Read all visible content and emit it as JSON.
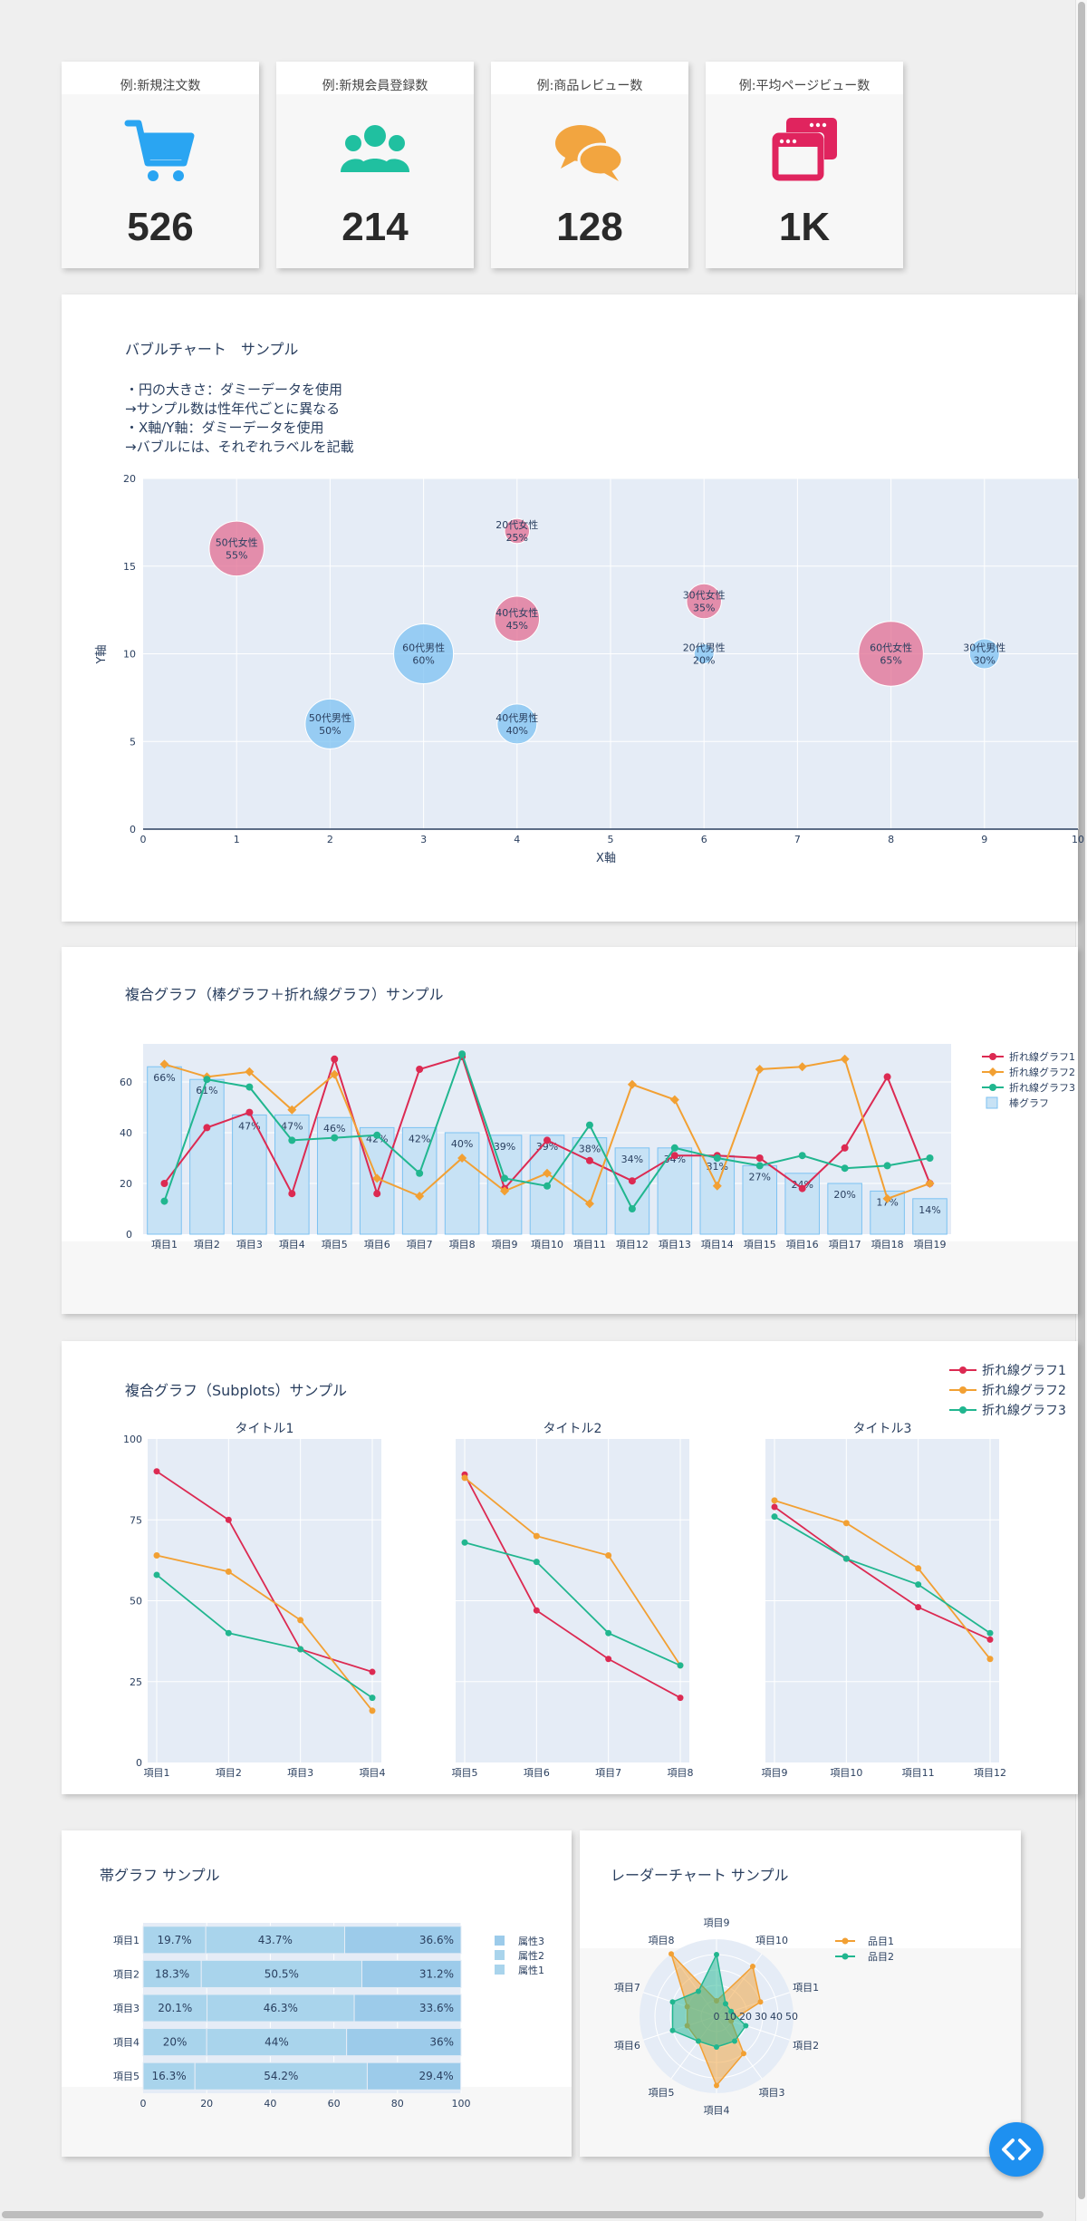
{
  "kpis": [
    {
      "label": "例:新規注文数",
      "value": "526",
      "icon": "shopping-cart-icon",
      "color": "#2aa5f2"
    },
    {
      "label": "例:新規会員登録数",
      "value": "214",
      "icon": "users-icon",
      "color": "#20c0a0"
    },
    {
      "label": "例:商品レビュー数",
      "value": "128",
      "icon": "comments-icon",
      "color": "#f2a540"
    },
    {
      "label": "例:平均ページビュー数",
      "value": "1K",
      "icon": "browser-windows-icon",
      "color": "#e0245e"
    }
  ],
  "chart_data": [
    {
      "type": "scatter",
      "subtype": "bubble",
      "title": "バブルチャート　サンプル",
      "description_lines": [
        "・円の大きさ：ダミーデータを使用",
        "→サンプル数は性年代ごとに異なる",
        "・X軸/Y軸：ダミーデータを使用",
        "→バブルには、それぞれラベルを記載"
      ],
      "xlabel": "X軸",
      "ylabel": "Y軸",
      "xlim": [
        0,
        10
      ],
      "ylim": [
        0,
        20
      ],
      "xticks": [
        0,
        1,
        2,
        3,
        4,
        5,
        6,
        7,
        8,
        9,
        10
      ],
      "yticks": [
        0,
        5,
        10,
        15,
        20
      ],
      "points": [
        {
          "x": 1,
          "y": 16,
          "size": 55,
          "label": "50代女性",
          "pct": "55%",
          "group": "女性"
        },
        {
          "x": 4,
          "y": 17,
          "size": 25,
          "label": "20代女性",
          "pct": "25%",
          "group": "女性"
        },
        {
          "x": 4,
          "y": 12,
          "size": 45,
          "label": "40代女性",
          "pct": "45%",
          "group": "女性"
        },
        {
          "x": 6,
          "y": 13,
          "size": 35,
          "label": "30代女性",
          "pct": "35%",
          "group": "女性"
        },
        {
          "x": 8,
          "y": 10,
          "size": 65,
          "label": "60代女性",
          "pct": "65%",
          "group": "女性"
        },
        {
          "x": 2,
          "y": 6,
          "size": 50,
          "label": "50代男性",
          "pct": "50%",
          "group": "男性"
        },
        {
          "x": 3,
          "y": 10,
          "size": 60,
          "label": "60代男性",
          "pct": "60%",
          "group": "男性"
        },
        {
          "x": 4,
          "y": 6,
          "size": 40,
          "label": "40代男性",
          "pct": "40%",
          "group": "男性"
        },
        {
          "x": 6,
          "y": 10,
          "size": 20,
          "label": "20代男性",
          "pct": "20%",
          "group": "男性"
        },
        {
          "x": 9,
          "y": 10,
          "size": 30,
          "label": "30代男性",
          "pct": "30%",
          "group": "男性"
        }
      ],
      "colors": {
        "女性": "#e26d92",
        "男性": "#7cc2f2"
      }
    },
    {
      "type": "bar",
      "title": "複合グラフ（棒グラフ＋折れ線グラフ）サンプル",
      "categories": [
        "項目1",
        "項目2",
        "項目3",
        "項目4",
        "項目5",
        "項目6",
        "項目7",
        "項目8",
        "項目9",
        "項目10",
        "項目11",
        "項目12",
        "項目13",
        "項目14",
        "項目15",
        "項目16",
        "項目17",
        "項目18",
        "項目19"
      ],
      "ylim": [
        0,
        75
      ],
      "yticks": [
        0,
        20,
        40,
        60
      ],
      "bar": {
        "name": "棒グラフ",
        "values": [
          66,
          61,
          47,
          47,
          46,
          42,
          42,
          40,
          39,
          39,
          38,
          34,
          34,
          31,
          27,
          24,
          20,
          17,
          14
        ],
        "labels": [
          "66%",
          "61%",
          "47%",
          "47%",
          "46%",
          "42%",
          "42%",
          "40%",
          "39%",
          "39%",
          "38%",
          "34%",
          "34%",
          "31%",
          "27%",
          "24%",
          "20%",
          "17%",
          "14%"
        ]
      },
      "series": [
        {
          "name": "折れ線グラフ1",
          "color": "#dc2a52",
          "marker": "circle",
          "values": [
            20,
            42,
            48,
            16,
            69,
            16,
            65,
            70,
            18,
            37,
            29,
            21,
            31,
            31,
            30,
            18,
            34,
            62,
            20
          ]
        },
        {
          "name": "折れ線グラフ2",
          "color": "#f2a033",
          "marker": "diamond",
          "values": [
            67,
            62,
            64,
            49,
            63,
            22,
            15,
            30,
            17,
            24,
            12,
            59,
            53,
            19,
            65,
            66,
            69,
            14,
            20
          ]
        },
        {
          "name": "折れ線グラフ3",
          "color": "#21b68f",
          "marker": "circle",
          "values": [
            13,
            61,
            58,
            37,
            38,
            39,
            24,
            71,
            22,
            19,
            43,
            10,
            34,
            30,
            27,
            31,
            26,
            27,
            30
          ]
        }
      ]
    },
    {
      "type": "line",
      "title": "複合グラフ（Subplots）サンプル",
      "ylim": [
        0,
        100
      ],
      "yticks": [
        0,
        25,
        50,
        75,
        100
      ],
      "legend": [
        "折れ線グラフ1",
        "折れ線グラフ2",
        "折れ線グラフ3"
      ],
      "colors": [
        "#dc2a52",
        "#f2a033",
        "#21b68f"
      ],
      "subplots": [
        {
          "title": "タイトル1",
          "categories": [
            "項目1",
            "項目2",
            "項目3",
            "項目4"
          ],
          "series": [
            [
              90,
              75,
              35,
              28
            ],
            [
              64,
              59,
              44,
              16
            ],
            [
              58,
              40,
              35,
              20
            ]
          ]
        },
        {
          "title": "タイトル2",
          "categories": [
            "項目5",
            "項目6",
            "項目7",
            "項目8"
          ],
          "series": [
            [
              89,
              47,
              32,
              20
            ],
            [
              88,
              70,
              64,
              30
            ],
            [
              68,
              62,
              40,
              30
            ]
          ]
        },
        {
          "title": "タイトル3",
          "categories": [
            "項目9",
            "項目10",
            "項目11",
            "項目12"
          ],
          "series": [
            [
              79,
              63,
              48,
              38
            ],
            [
              81,
              74,
              60,
              32
            ],
            [
              76,
              63,
              55,
              40
            ]
          ]
        }
      ]
    },
    {
      "type": "bar",
      "subtype": "stacked-horizontal",
      "title": "帯グラフ サンプル",
      "categories": [
        "項目1",
        "項目2",
        "項目3",
        "項目4",
        "項目5"
      ],
      "xlim": [
        0,
        100
      ],
      "xticks": [
        0,
        20,
        40,
        60,
        80,
        100
      ],
      "series": [
        {
          "name": "属性1",
          "color": "#a9d4ec",
          "values": [
            19.7,
            18.3,
            20.1,
            20,
            16.3
          ],
          "labels": [
            "19.7%",
            "18.3%",
            "20.1%",
            "20%",
            "16.3%"
          ]
        },
        {
          "name": "属性2",
          "color": "#a9d4ec",
          "values": [
            43.7,
            50.5,
            46.3,
            44,
            54.2
          ],
          "labels": [
            "43.7%",
            "50.5%",
            "46.3%",
            "44%",
            "54.2%"
          ]
        },
        {
          "name": "属性3",
          "color": "#9ccbea",
          "values": [
            36.6,
            31.2,
            33.6,
            36,
            29.4
          ],
          "labels": [
            "36.6%",
            "31.2%",
            "33.6%",
            "36%",
            "29.4%"
          ]
        }
      ],
      "legend_order": [
        "属性3",
        "属性2",
        "属性1"
      ]
    },
    {
      "type": "radar",
      "title": "レーダーチャート サンプル",
      "axes": [
        "項目1",
        "項目2",
        "項目3",
        "項目4",
        "項目5",
        "項目6",
        "項目7",
        "項目8",
        "項目9",
        "項目10"
      ],
      "rlim": [
        0,
        50
      ],
      "rticks": [
        "0",
        "10",
        "20",
        "30",
        "40",
        "50"
      ],
      "series": [
        {
          "name": "品目1",
          "color": "#f2a033",
          "values": [
            30,
            10,
            30,
            45,
            20,
            20,
            20,
            50,
            10,
            40
          ]
        },
        {
          "name": "品目2",
          "color": "#21b68f",
          "values": [
            10,
            20,
            20,
            20,
            20,
            30,
            30,
            20,
            40,
            10
          ]
        }
      ]
    }
  ]
}
